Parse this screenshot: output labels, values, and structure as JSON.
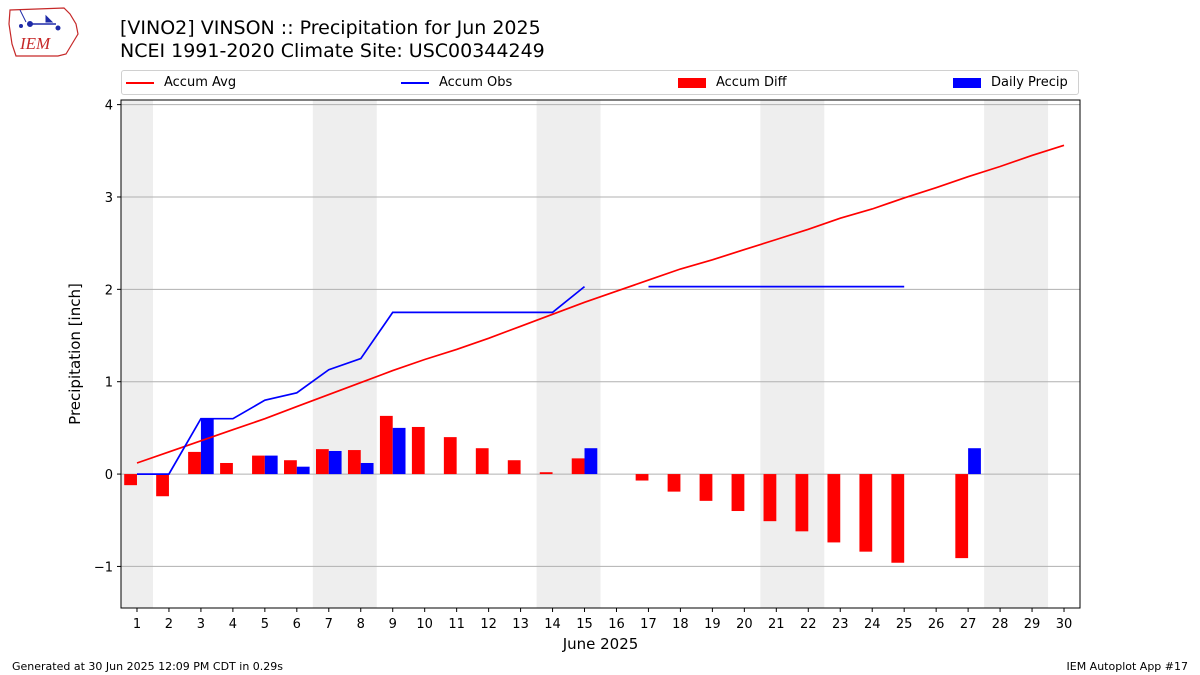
{
  "logo": {
    "text": "IEM",
    "colors": {
      "stroke": "#c62828",
      "text": "#c62828",
      "icons": "#1e2aa8"
    }
  },
  "header": {
    "title": "[VINO2] VINSON :: Precipitation for Jun 2025",
    "subtitle": "NCEI 1991-2020 Climate Site: USC00344249"
  },
  "legend": [
    {
      "label": "Accum Avg",
      "kind": "line",
      "color": "#ff0000"
    },
    {
      "label": "Accum Obs",
      "kind": "line",
      "color": "#0000ff"
    },
    {
      "label": "Accum Diff",
      "kind": "bar",
      "color": "#ff0000"
    },
    {
      "label": "Daily Precip",
      "kind": "bar",
      "color": "#0000ff"
    }
  ],
  "footer": {
    "left": "Generated at 30 Jun 2025 12:09 PM CDT in 0.29s",
    "right": "IEM Autoplot App #17"
  },
  "chart_data": {
    "type": "bar",
    "xlabel": "June 2025",
    "ylabel": "Precipitation [inch]",
    "xlim": [
      0.5,
      30.5
    ],
    "ylim": [
      -1.45,
      4.05
    ],
    "yticks": [
      -1,
      0,
      1,
      2,
      3,
      4
    ],
    "ytick_labels": [
      "−1",
      "0",
      "1",
      "2",
      "3",
      "4"
    ],
    "x": [
      1,
      2,
      3,
      4,
      5,
      6,
      7,
      8,
      9,
      10,
      11,
      12,
      13,
      14,
      15,
      16,
      17,
      18,
      19,
      20,
      21,
      22,
      23,
      24,
      25,
      26,
      27,
      28,
      29,
      30
    ],
    "weekend_shading": [
      [
        0.5,
        1.5
      ],
      [
        6.5,
        8.5
      ],
      [
        13.5,
        15.5
      ],
      [
        20.5,
        22.5
      ],
      [
        27.5,
        29.5
      ]
    ],
    "grid": "horizontal",
    "colors": {
      "avg": "#ff0000",
      "obs": "#0000ff",
      "shade": "#eeeeee",
      "grid": "#b0b0b0"
    },
    "series": [
      {
        "name": "Accum Avg",
        "type": "line",
        "values": [
          0.12,
          0.24,
          0.36,
          0.48,
          0.6,
          0.73,
          0.86,
          0.99,
          1.12,
          1.24,
          1.35,
          1.47,
          1.6,
          1.73,
          1.86,
          1.98,
          2.1,
          2.22,
          2.32,
          2.43,
          2.54,
          2.65,
          2.77,
          2.87,
          2.99,
          3.1,
          3.22,
          3.33,
          3.45,
          3.56
        ]
      },
      {
        "name": "Accum Obs",
        "type": "line",
        "values": [
          0.0,
          0.0,
          0.6,
          0.6,
          0.8,
          0.88,
          1.13,
          1.25,
          1.75,
          1.75,
          1.75,
          1.75,
          1.75,
          1.75,
          2.03,
          null,
          2.03,
          2.03,
          2.03,
          2.03,
          2.03,
          2.03,
          2.03,
          2.03,
          2.03,
          null,
          null,
          null,
          null,
          null
        ]
      },
      {
        "name": "Accum Diff",
        "type": "bar",
        "values": [
          -0.12,
          -0.24,
          0.24,
          0.12,
          0.2,
          0.15,
          0.27,
          0.26,
          0.63,
          0.51,
          0.4,
          0.28,
          0.15,
          0.02,
          0.17,
          null,
          -0.07,
          -0.19,
          -0.29,
          -0.4,
          -0.51,
          -0.62,
          -0.74,
          -0.84,
          -0.96,
          null,
          -0.91,
          null,
          null,
          null
        ]
      },
      {
        "name": "Daily Precip",
        "type": "bar",
        "values": [
          0,
          0,
          0.6,
          0,
          0.2,
          0.08,
          0.25,
          0.12,
          0.5,
          0,
          0,
          0,
          0,
          0,
          0.28,
          null,
          0,
          0,
          0,
          0,
          0,
          0,
          0,
          0,
          0,
          null,
          0.28,
          null,
          null,
          null
        ]
      }
    ]
  }
}
